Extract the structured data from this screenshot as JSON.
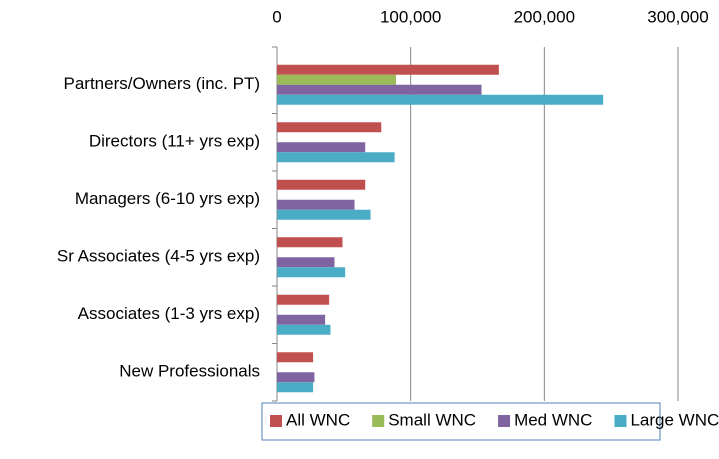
{
  "chart_data": {
    "type": "bar",
    "orientation": "horizontal",
    "categories": [
      "Partners/Owners (inc. PT)",
      "Directors (11+ yrs exp)",
      "Managers (6-10 yrs exp)",
      "Sr Associates (4-5 yrs exp)",
      "Associates (1-3 yrs exp)",
      "New Professionals"
    ],
    "series": [
      {
        "name": "All WNC",
        "color": "#c0504d",
        "values": [
          166000,
          78000,
          66000,
          49000,
          39000,
          27000
        ]
      },
      {
        "name": "Small WNC",
        "color": "#9bbb59",
        "values": [
          89000,
          null,
          null,
          null,
          null,
          null
        ]
      },
      {
        "name": "Med WNC",
        "color": "#8064a2",
        "values": [
          153000,
          66000,
          58000,
          43000,
          36000,
          28000
        ]
      },
      {
        "name": "Large WNC",
        "color": "#4bacc6",
        "values": [
          244000,
          88000,
          70000,
          51000,
          40000,
          27000
        ]
      }
    ],
    "xlim": [
      0,
      300000
    ],
    "xticks": [
      0,
      {
        "value": 100000,
        "label": "100,000"
      },
      {
        "value": 200000,
        "label": "200,000"
      },
      {
        "value": 300000,
        "label": "300,000"
      }
    ],
    "grid": true,
    "legend": "bottom"
  }
}
